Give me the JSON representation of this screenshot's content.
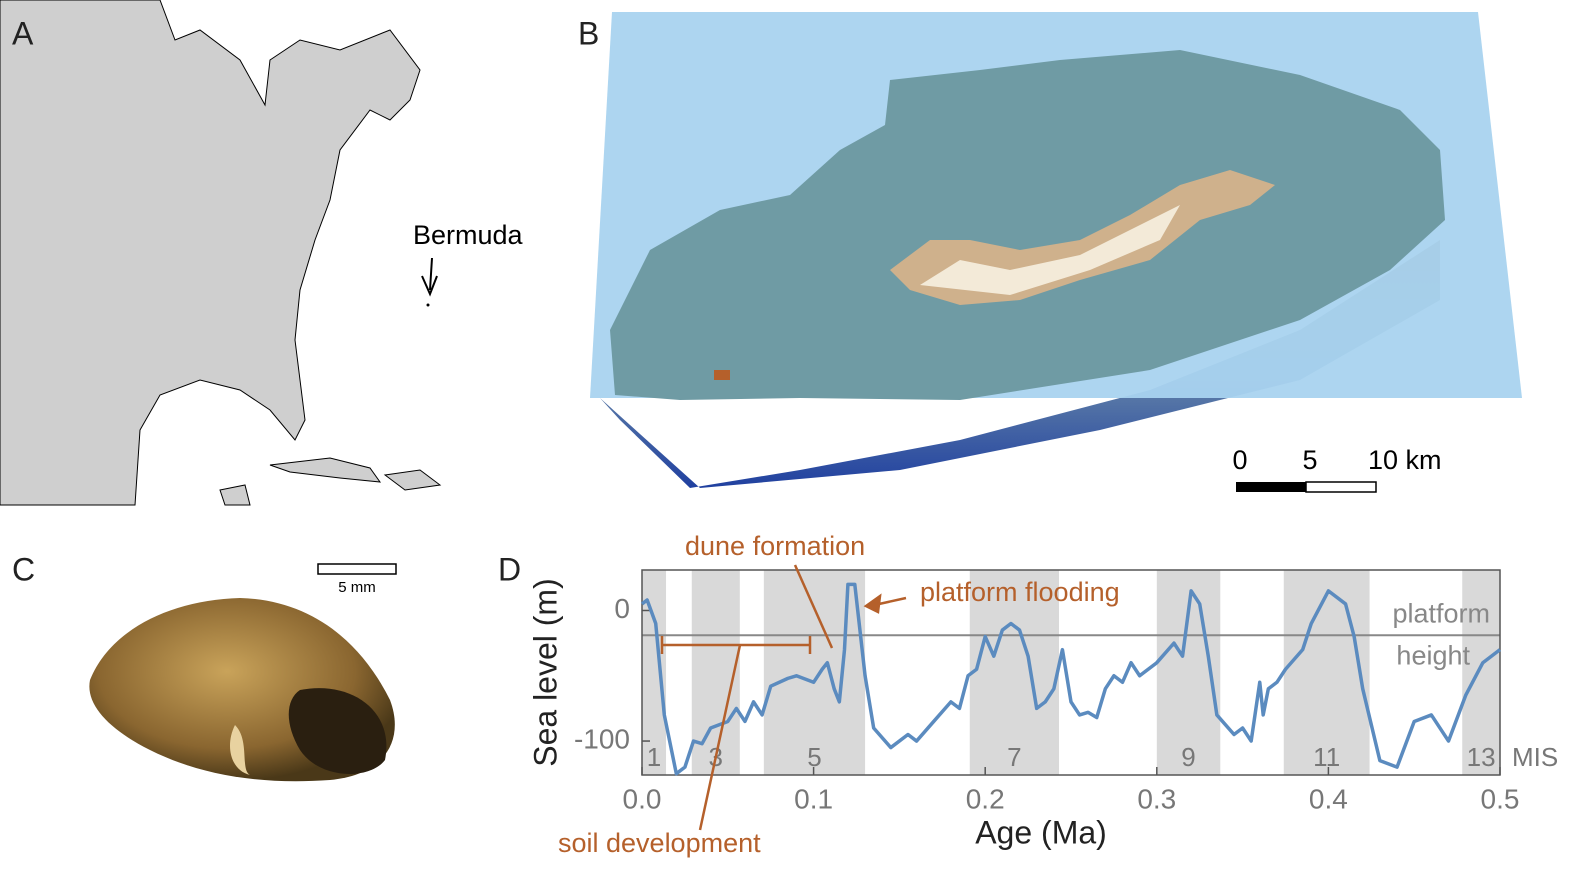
{
  "panels": {
    "a": {
      "label": "A",
      "place": "Bermuda"
    },
    "b": {
      "label": "B",
      "scale": [
        "0",
        "5",
        "10 km"
      ]
    },
    "c": {
      "label": "C",
      "scale": "5 mm"
    },
    "d": {
      "label": "D"
    }
  },
  "chart_data": {
    "type": "line",
    "xlabel": "Age (Ma)",
    "ylabel": "Sea level (m)",
    "xlim": [
      0,
      0.5
    ],
    "ylim": [
      -126,
      31
    ],
    "xticks": [
      {
        "value": 0,
        "label": "0.0"
      },
      0.1,
      0.2,
      0.3,
      0.4,
      0.5
    ],
    "yticks": [
      0,
      -100
    ],
    "color": "#5b8bbf",
    "x": [
      0.0,
      0.003,
      0.008,
      0.013,
      0.02,
      0.025,
      0.03,
      0.035,
      0.04,
      0.05,
      0.055,
      0.06,
      0.065,
      0.07,
      0.075,
      0.085,
      0.09,
      0.1,
      0.105,
      0.108,
      0.112,
      0.115,
      0.118,
      0.12,
      0.124,
      0.13,
      0.135,
      0.145,
      0.155,
      0.16,
      0.17,
      0.18,
      0.185,
      0.19,
      0.195,
      0.2,
      0.205,
      0.21,
      0.215,
      0.22,
      0.225,
      0.23,
      0.235,
      0.24,
      0.245,
      0.25,
      0.255,
      0.26,
      0.265,
      0.27,
      0.275,
      0.28,
      0.285,
      0.29,
      0.3,
      0.31,
      0.315,
      0.32,
      0.325,
      0.33,
      0.335,
      0.345,
      0.35,
      0.355,
      0.36,
      0.362,
      0.365,
      0.37,
      0.375,
      0.385,
      0.39,
      0.4,
      0.41,
      0.415,
      0.42,
      0.43,
      0.44,
      0.45,
      0.46,
      0.47,
      0.48,
      0.49,
      0.5
    ],
    "values": [
      5,
      8,
      -10,
      -80,
      -125,
      -120,
      -100,
      -102,
      -90,
      -85,
      -75,
      -85,
      -70,
      -80,
      -58,
      -52,
      -50,
      -55,
      -45,
      -40,
      -60,
      -70,
      -30,
      20,
      20,
      -50,
      -90,
      -105,
      -95,
      -100,
      -85,
      -70,
      -75,
      -50,
      -45,
      -20,
      -35,
      -15,
      -10,
      -15,
      -35,
      -75,
      -70,
      -60,
      -30,
      -70,
      -80,
      -78,
      -82,
      -60,
      -50,
      -55,
      -40,
      -50,
      -40,
      -25,
      -35,
      15,
      5,
      -35,
      -80,
      -95,
      -90,
      -100,
      -55,
      -80,
      -60,
      -55,
      -45,
      -30,
      -10,
      15,
      5,
      -20,
      -60,
      -115,
      -120,
      -85,
      -80,
      -100,
      -65,
      -40,
      -30
    ],
    "platform_height": -19,
    "platform_label": [
      "platform",
      "height"
    ],
    "bands_label": "MIS",
    "bands": [
      {
        "label": "1",
        "start": 0.0,
        "end": 0.014
      },
      {
        "label": "3",
        "start": 0.029,
        "end": 0.057
      },
      {
        "label": "5",
        "start": 0.071,
        "end": 0.13
      },
      {
        "label": "7",
        "start": 0.191,
        "end": 0.243
      },
      {
        "label": "9",
        "start": 0.3,
        "end": 0.337
      },
      {
        "label": "11",
        "start": 0.374,
        "end": 0.424
      },
      {
        "label": "13",
        "start": 0.478,
        "end": 0.5
      }
    ],
    "annotations": [
      "dune formation",
      "platform flooding",
      "soil development"
    ]
  }
}
